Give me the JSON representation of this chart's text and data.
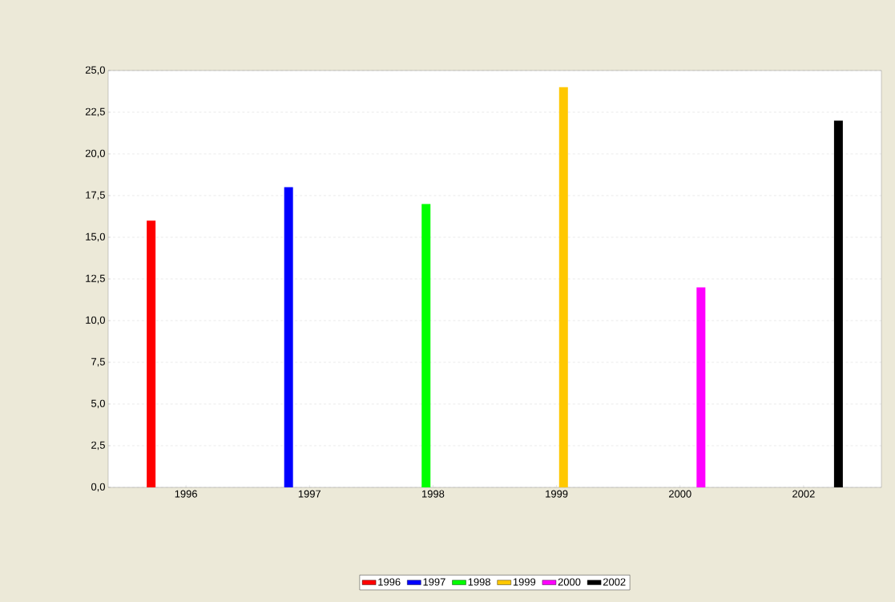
{
  "chart_data": {
    "type": "bar",
    "categories": [
      "1996",
      "1997",
      "1998",
      "1999",
      "2000",
      "2002"
    ],
    "series": [
      {
        "name": "1996",
        "color": "#ff0000",
        "values": [
          16,
          null,
          null,
          null,
          null,
          null
        ]
      },
      {
        "name": "1997",
        "color": "#0000ff",
        "values": [
          null,
          18,
          null,
          null,
          null,
          null
        ]
      },
      {
        "name": "1998",
        "color": "#00ff00",
        "values": [
          null,
          null,
          17,
          null,
          null,
          null
        ]
      },
      {
        "name": "1999",
        "color": "#ffc800",
        "values": [
          null,
          null,
          null,
          24,
          null,
          null
        ]
      },
      {
        "name": "2000",
        "color": "#ff00ff",
        "values": [
          null,
          null,
          null,
          null,
          12,
          null
        ]
      },
      {
        "name": "2002",
        "color": "#000000",
        "values": [
          null,
          null,
          null,
          null,
          null,
          22
        ]
      }
    ],
    "ylim": [
      0,
      25
    ],
    "yticks": [
      {
        "value": 0,
        "label": "0,0"
      },
      {
        "value": 2.5,
        "label": "2,5"
      },
      {
        "value": 5,
        "label": "5,0"
      },
      {
        "value": 7.5,
        "label": "7,5"
      },
      {
        "value": 10,
        "label": "10,0"
      },
      {
        "value": 12.5,
        "label": "12,5"
      },
      {
        "value": 15,
        "label": "15,0"
      },
      {
        "value": 17.5,
        "label": "17,5"
      },
      {
        "value": 20,
        "label": "20,0"
      },
      {
        "value": 22.5,
        "label": "22,5"
      },
      {
        "value": 25,
        "label": "25,0"
      }
    ],
    "grid": "y",
    "legend": "bottom"
  }
}
